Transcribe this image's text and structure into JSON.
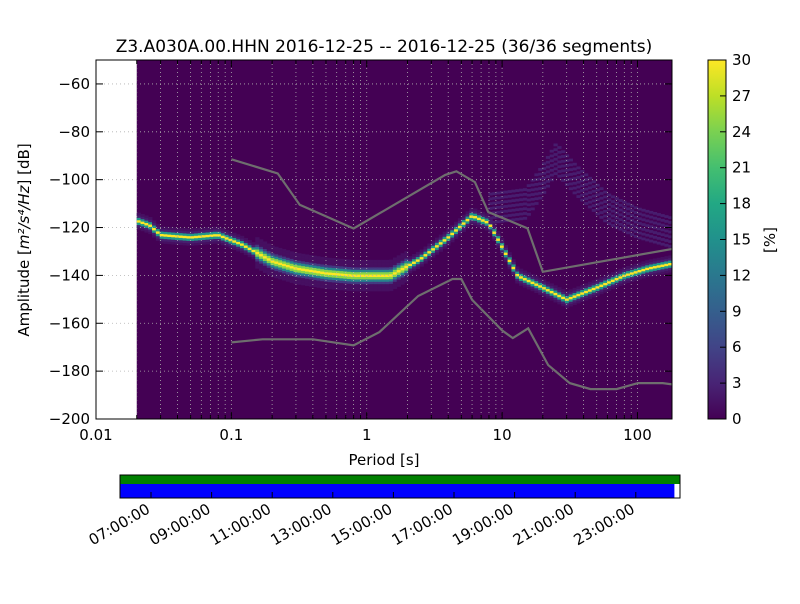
{
  "chart_data": {
    "type": "heatmap",
    "title": "Z3.A030A.00.HHN   2016-12-25 -- 2016-12-25  (36/36 segments)",
    "xlabel": "Period [s]",
    "ylabel_prefix": "Amplitude [",
    "ylabel_math": "m²/s⁴/Hz",
    "ylabel_suffix": "] [dB]",
    "x_scale": "log",
    "xlim": [
      0.01,
      180
    ],
    "ylim": [
      -200,
      -50
    ],
    "x_ticks": [
      {
        "value": 0.01,
        "label": "0.01"
      },
      {
        "value": 0.1,
        "label": "0.1"
      },
      {
        "value": 1,
        "label": "1"
      },
      {
        "value": 10,
        "label": "10"
      },
      {
        "value": 100,
        "label": "100"
      }
    ],
    "y_ticks": [
      {
        "value": -60,
        "label": "−60"
      },
      {
        "value": -80,
        "label": "−80"
      },
      {
        "value": -100,
        "label": "−100"
      },
      {
        "value": -120,
        "label": "−120"
      },
      {
        "value": -140,
        "label": "−140"
      },
      {
        "value": -160,
        "label": "−160"
      },
      {
        "value": -180,
        "label": "−180"
      },
      {
        "value": -200,
        "label": "−200"
      }
    ],
    "grid": true,
    "data_period_range": [
      0.02,
      180
    ],
    "colormap": "viridis",
    "colorbar": {
      "label": "[%]",
      "range": [
        0,
        30
      ],
      "ticks": [
        {
          "value": 0,
          "label": "0"
        },
        {
          "value": 3,
          "label": "3"
        },
        {
          "value": 6,
          "label": "6"
        },
        {
          "value": 9,
          "label": "9"
        },
        {
          "value": 12,
          "label": "12"
        },
        {
          "value": 15,
          "label": "15"
        },
        {
          "value": 18,
          "label": "18"
        },
        {
          "value": 21,
          "label": "21"
        },
        {
          "value": 24,
          "label": "24"
        },
        {
          "value": 27,
          "label": "27"
        },
        {
          "value": 30,
          "label": "30"
        }
      ]
    },
    "mode_line": [
      [
        0.02,
        -117
      ],
      [
        0.025,
        -119
      ],
      [
        0.03,
        -123
      ],
      [
        0.05,
        -124
      ],
      [
        0.08,
        -123
      ],
      [
        0.12,
        -127
      ],
      [
        0.2,
        -134
      ],
      [
        0.3,
        -137
      ],
      [
        0.5,
        -139
      ],
      [
        0.8,
        -140
      ],
      [
        1.5,
        -140
      ],
      [
        2.5,
        -133
      ],
      [
        4,
        -124
      ],
      [
        6,
        -115
      ],
      [
        8,
        -118
      ],
      [
        10,
        -128
      ],
      [
        13,
        -140
      ],
      [
        20,
        -145
      ],
      [
        30,
        -150
      ],
      [
        50,
        -145
      ],
      [
        80,
        -140
      ],
      [
        120,
        -137
      ],
      [
        180,
        -135
      ]
    ],
    "secondary_band": [
      [
        8,
        -112
      ],
      [
        15,
        -110
      ],
      [
        20,
        -100
      ],
      [
        25,
        -91
      ],
      [
        35,
        -100
      ],
      [
        60,
        -112
      ],
      [
        100,
        -118
      ],
      [
        180,
        -122
      ]
    ],
    "model_high": [
      [
        0.1,
        -91.5
      ],
      [
        0.22,
        -97.4
      ],
      [
        0.32,
        -110.5
      ],
      [
        0.8,
        -120.4
      ],
      [
        3.8,
        -98.0
      ],
      [
        4.6,
        -96.5
      ],
      [
        6.3,
        -101.0
      ],
      [
        7.9,
        -113.5
      ],
      [
        15.4,
        -120.3
      ],
      [
        20,
        -138.5
      ],
      [
        354.8,
        -126.0
      ]
    ],
    "model_low": [
      [
        0.1,
        -168.0
      ],
      [
        0.17,
        -166.7
      ],
      [
        0.4,
        -166.7
      ],
      [
        0.8,
        -169.2
      ],
      [
        1.24,
        -163.7
      ],
      [
        2.4,
        -148.6
      ],
      [
        4.3,
        -141.5
      ],
      [
        5.0,
        -141.5
      ],
      [
        6.0,
        -150.2
      ],
      [
        10.0,
        -163.0
      ],
      [
        12.0,
        -166.2
      ],
      [
        15.6,
        -162.1
      ],
      [
        21.9,
        -177.5
      ],
      [
        31.6,
        -185.0
      ],
      [
        45.0,
        -187.5
      ],
      [
        70.0,
        -187.5
      ],
      [
        101.0,
        -185.0
      ],
      [
        154.0,
        -185.0
      ],
      [
        328.0,
        -187.5
      ]
    ],
    "time_axis": {
      "ticks": [
        "07:00:00",
        "09:00:00",
        "11:00:00",
        "13:00:00",
        "15:00:00",
        "17:00:00",
        "19:00:00",
        "21:00:00",
        "23:00:00"
      ],
      "data_coverage_color": "#008000",
      "psd_coverage_color": "#0000ff",
      "coverage_fraction": 0.99
    }
  }
}
